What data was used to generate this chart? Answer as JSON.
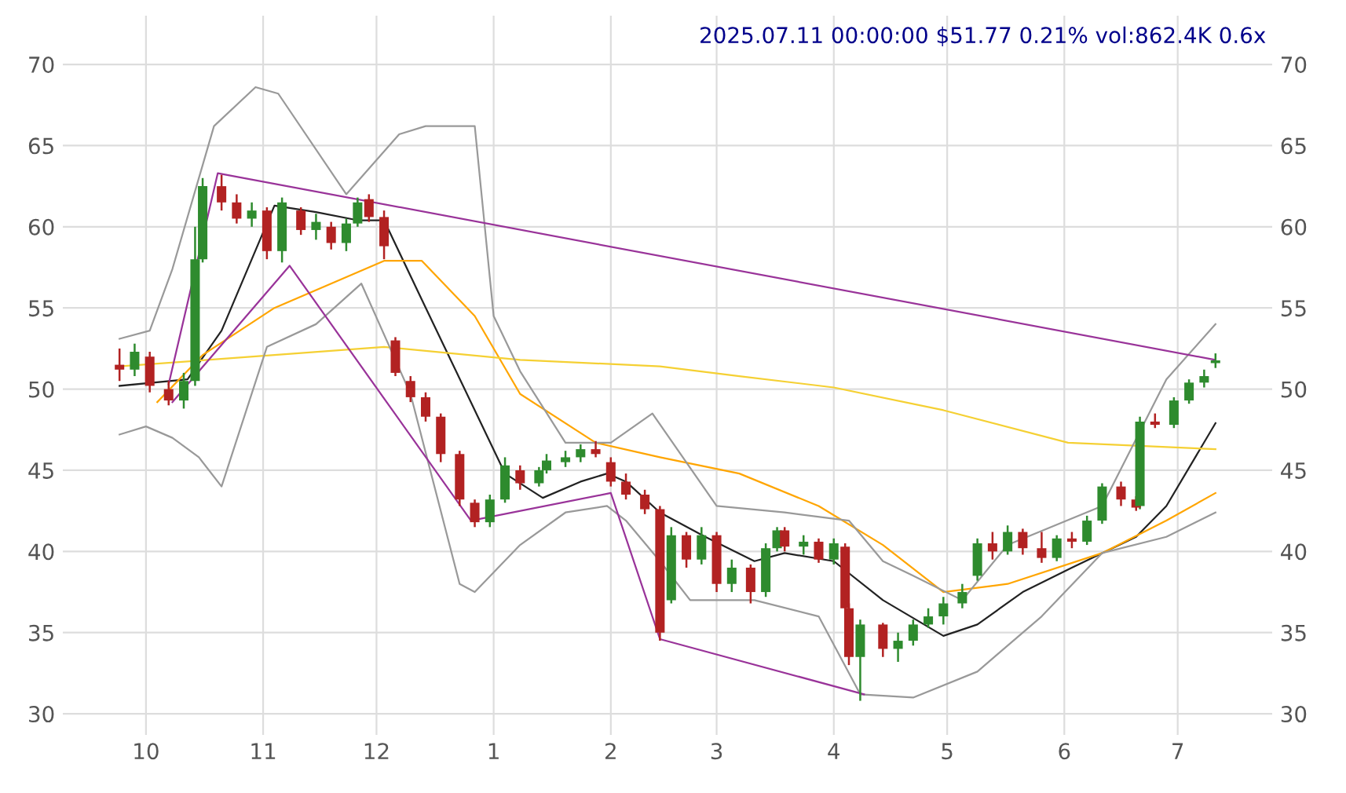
{
  "chart_data": {
    "type": "candlestick",
    "title": "2025.07.11 00:00:00 $51.77 0.21% vol:862.4K 0.6x",
    "x": [
      "2024-09-24",
      "2024-09-28",
      "2024-10-02",
      "2024-10-07",
      "2024-10-11",
      "2024-10-14",
      "2024-10-16",
      "2024-10-21",
      "2024-10-25",
      "2024-10-29",
      "2024-11-02",
      "2024-11-06",
      "2024-11-11",
      "2024-11-15",
      "2024-11-19",
      "2024-11-23",
      "2024-11-26",
      "2024-11-29",
      "2024-12-03",
      "2024-12-06",
      "2024-12-10",
      "2024-12-14",
      "2024-12-18",
      "2024-12-23",
      "2024-12-27",
      "2024-12-31",
      "2025-01-04",
      "2025-01-08",
      "2025-01-13",
      "2025-01-15",
      "2025-01-20",
      "2025-01-24",
      "2025-01-28",
      "2025-02-01",
      "2025-02-05",
      "2025-02-10",
      "2025-02-14",
      "2025-02-17",
      "2025-02-21",
      "2025-02-25",
      "2025-03-01",
      "2025-03-05",
      "2025-03-10",
      "2025-03-14",
      "2025-03-17",
      "2025-03-19",
      "2025-03-24",
      "2025-03-28",
      "2025-04-01",
      "2025-04-04",
      "2025-04-05",
      "2025-04-08",
      "2025-04-14",
      "2025-04-18",
      "2025-04-22",
      "2025-04-26",
      "2025-04-30",
      "2025-05-05",
      "2025-05-09",
      "2025-05-13",
      "2025-05-17",
      "2025-05-21",
      "2025-05-26",
      "2025-05-30",
      "2025-06-03",
      "2025-06-07",
      "2025-06-11",
      "2025-06-16",
      "2025-06-20",
      "2025-06-21",
      "2025-06-25",
      "2025-06-30",
      "2025-07-04",
      "2025-07-08",
      "2025-07-11"
    ],
    "ohlc": [
      [
        51.5,
        52.5,
        50.5,
        51.2
      ],
      [
        51.2,
        52.8,
        50.8,
        52.3
      ],
      [
        52,
        52.3,
        49.8,
        50.2
      ],
      [
        50,
        50.5,
        49,
        49.3
      ],
      [
        49.3,
        51,
        48.8,
        50.5
      ],
      [
        50.5,
        60,
        50.2,
        58
      ],
      [
        58,
        63,
        57.8,
        62.5
      ],
      [
        62.5,
        63.2,
        61,
        61.5
      ],
      [
        61.5,
        62,
        60.2,
        60.5
      ],
      [
        60.5,
        61.5,
        60,
        61
      ],
      [
        61,
        61.2,
        58,
        58.5
      ],
      [
        58.5,
        61.8,
        57.8,
        61.5
      ],
      [
        61,
        61.2,
        59.5,
        59.8
      ],
      [
        59.8,
        60.8,
        59.2,
        60.3
      ],
      [
        60,
        60.3,
        58.6,
        59
      ],
      [
        59,
        60.5,
        58.5,
        60.2
      ],
      [
        60.2,
        61.8,
        60,
        61.5
      ],
      [
        61.7,
        62,
        60.3,
        60.6
      ],
      [
        60.6,
        61,
        58,
        58.8
      ],
      [
        53,
        53.2,
        50.8,
        51
      ],
      [
        50.5,
        50.8,
        49.2,
        49.5
      ],
      [
        49.5,
        49.8,
        48,
        48.3
      ],
      [
        48.3,
        48.5,
        45.5,
        46
      ],
      [
        46,
        46.2,
        42.8,
        43.2
      ],
      [
        43,
        43.2,
        41.5,
        41.8
      ],
      [
        41.8,
        43.5,
        41.5,
        43.2
      ],
      [
        43.2,
        45.8,
        43,
        45.3
      ],
      [
        45,
        45.3,
        43.8,
        44.2
      ],
      [
        44.2,
        45.2,
        44,
        45
      ],
      [
        45,
        46,
        44.8,
        45.6
      ],
      [
        45.5,
        46.2,
        45.2,
        45.8
      ],
      [
        45.8,
        46.6,
        45.5,
        46.3
      ],
      [
        46.3,
        46.8,
        45.8,
        46
      ],
      [
        45.5,
        45.8,
        44,
        44.3
      ],
      [
        44.3,
        44.8,
        43.2,
        43.5
      ],
      [
        43.5,
        43.8,
        42.3,
        42.6
      ],
      [
        42.6,
        42.8,
        34.5,
        35
      ],
      [
        37,
        41.5,
        36.8,
        41
      ],
      [
        41,
        41.2,
        39,
        39.5
      ],
      [
        39.5,
        41.5,
        39.2,
        41
      ],
      [
        41,
        41.2,
        37.5,
        38
      ],
      [
        38,
        39.5,
        37.5,
        39
      ],
      [
        39,
        39.2,
        36.8,
        37.5
      ],
      [
        37.5,
        40.5,
        37.2,
        40.2
      ],
      [
        40.2,
        41.5,
        40,
        41.3
      ],
      [
        41.3,
        41.5,
        40,
        40.3
      ],
      [
        40.3,
        41,
        39.8,
        40.6
      ],
      [
        40.6,
        40.8,
        39.3,
        39.5
      ],
      [
        39.5,
        40.8,
        39.2,
        40.5
      ],
      [
        40.3,
        40.5,
        36,
        36.5
      ],
      [
        36.5,
        36.8,
        33,
        33.5
      ],
      [
        33.5,
        35.8,
        30.8,
        35.5
      ],
      [
        35.5,
        35.6,
        33.5,
        34
      ],
      [
        34,
        35,
        33.2,
        34.5
      ],
      [
        34.5,
        35.8,
        34.2,
        35.5
      ],
      [
        35.5,
        36.5,
        35.3,
        36
      ],
      [
        36,
        37.2,
        35.5,
        36.8
      ],
      [
        36.8,
        38,
        36.5,
        37.5
      ],
      [
        38.5,
        40.8,
        38.2,
        40.5
      ],
      [
        40.5,
        41.2,
        39.5,
        40
      ],
      [
        40,
        41.6,
        39.8,
        41.2
      ],
      [
        41.2,
        41.4,
        39.8,
        40.2
      ],
      [
        40.2,
        41.2,
        39.3,
        39.6
      ],
      [
        39.6,
        41,
        39.4,
        40.8
      ],
      [
        40.8,
        41.2,
        40.2,
        40.6
      ],
      [
        40.6,
        42.2,
        40.4,
        41.9
      ],
      [
        41.9,
        44.2,
        41.7,
        44
      ],
      [
        44,
        44.3,
        42.8,
        43.2
      ],
      [
        43.2,
        43.4,
        42.5,
        42.7
      ],
      [
        42.8,
        48.3,
        42.6,
        48
      ],
      [
        48,
        48.5,
        47.6,
        47.8
      ],
      [
        47.8,
        49.5,
        47.6,
        49.3
      ],
      [
        49.3,
        50.6,
        49.1,
        50.4
      ],
      [
        50.4,
        51.2,
        50.1,
        50.8
      ],
      [
        51.6,
        52.2,
        51.3,
        51.77
      ]
    ],
    "colors": [
      "#b22222",
      "#2e8b2e",
      "#b22222",
      "#b22222",
      "#2e8b2e",
      "#2e8b2e",
      "#2e8b2e",
      "#b22222",
      "#b22222",
      "#2e8b2e",
      "#b22222",
      "#2e8b2e",
      "#b22222",
      "#2e8b2e",
      "#b22222",
      "#2e8b2e",
      "#2e8b2e",
      "#b22222",
      "#b22222",
      "#b22222",
      "#b22222",
      "#b22222",
      "#b22222",
      "#b22222",
      "#b22222",
      "#2e8b2e",
      "#2e8b2e",
      "#b22222",
      "#2e8b2e",
      "#2e8b2e",
      "#2e8b2e",
      "#2e8b2e",
      "#b22222",
      "#b22222",
      "#b22222",
      "#b22222",
      "#b22222",
      "#2e8b2e",
      "#b22222",
      "#2e8b2e",
      "#b22222",
      "#2e8b2e",
      "#b22222",
      "#2e8b2e",
      "#2e8b2e",
      "#b22222",
      "#2e8b2e",
      "#b22222",
      "#2e8b2e",
      "#b22222",
      "#b22222",
      "#2e8b2e",
      "#b22222",
      "#2e8b2e",
      "#2e8b2e",
      "#2e8b2e",
      "#2e8b2e",
      "#2e8b2e",
      "#2e8b2e",
      "#b22222",
      "#2e8b2e",
      "#b22222",
      "#b22222",
      "#2e8b2e",
      "#b22222",
      "#2e8b2e",
      "#2e8b2e",
      "#b22222",
      "#b22222",
      "#2e8b2e",
      "#b22222",
      "#2e8b2e",
      "#2e8b2e",
      "#2e8b2e",
      "#2e8b2e"
    ],
    "series": [
      {
        "type": "line",
        "color": "#222222",
        "x": [
          "2024-09-24",
          "2024-10-12",
          "2024-10-21",
          "2024-11-04",
          "2024-11-15",
          "2024-11-26",
          "2024-12-03",
          "2024-12-13",
          "2024-12-27",
          "2025-01-04",
          "2025-01-14",
          "2025-01-24",
          "2025-01-31",
          "2025-02-05",
          "2025-02-14",
          "2025-02-26",
          "2025-03-11",
          "2025-03-19",
          "2025-04-01",
          "2025-04-14",
          "2025-04-30",
          "2025-05-09",
          "2025-05-21",
          "2025-06-03",
          "2025-06-20",
          "2025-06-28",
          "2025-07-11"
        ],
        "values": [
          50.2,
          50.6,
          53.6,
          61.3,
          60.9,
          60.4,
          60.4,
          55.5,
          48.7,
          44.8,
          43.3,
          44.3,
          44.8,
          44.3,
          42.4,
          40.9,
          39.4,
          39.9,
          39.4,
          37.0,
          34.8,
          35.5,
          37.5,
          39.0,
          40.9,
          42.8,
          47.9
        ]
      },
      {
        "type": "line",
        "color": "#ffa500",
        "x": [
          "2024-10-04",
          "2024-10-16",
          "2024-11-04",
          "2024-12-03",
          "2024-12-13",
          "2024-12-27",
          "2025-01-08",
          "2025-01-28",
          "2025-02-14",
          "2025-03-07",
          "2025-03-28",
          "2025-04-14",
          "2025-04-30",
          "2025-05-17",
          "2025-06-11",
          "2025-06-28",
          "2025-07-11"
        ],
        "values": [
          49.2,
          52.1,
          55.0,
          57.9,
          57.9,
          54.5,
          49.7,
          46.7,
          45.8,
          44.8,
          42.8,
          40.4,
          37.5,
          38.0,
          39.9,
          41.9,
          43.6
        ]
      },
      {
        "type": "line",
        "color": "#f5d033",
        "x": [
          "2024-09-24",
          "2024-11-04",
          "2024-12-03",
          "2025-01-08",
          "2025-02-14",
          "2025-03-07",
          "2025-04-01",
          "2025-04-30",
          "2025-06-02",
          "2025-07-11"
        ],
        "values": [
          51.4,
          52.1,
          52.6,
          51.8,
          51.4,
          50.8,
          50.1,
          48.7,
          46.7,
          46.3
        ]
      },
      {
        "type": "line",
        "color": "#999999",
        "x": [
          "2024-09-24",
          "2024-10-02",
          "2024-10-08",
          "2024-10-19",
          "2024-10-30",
          "2024-11-05",
          "2024-11-23",
          "2024-12-07",
          "2024-12-14",
          "2024-12-27",
          "2025-01-01",
          "2025-01-08",
          "2025-01-20",
          "2025-02-01",
          "2025-02-12",
          "2025-03-01",
          "2025-03-19",
          "2025-04-05",
          "2025-04-14",
          "2025-04-22",
          "2025-05-05",
          "2025-05-17",
          "2025-06-11",
          "2025-06-28",
          "2025-07-11"
        ],
        "values": [
          53.1,
          53.6,
          57.4,
          66.2,
          68.6,
          68.2,
          62.0,
          65.7,
          66.2,
          66.2,
          54.5,
          51.1,
          46.7,
          46.7,
          48.5,
          42.8,
          42.4,
          41.9,
          39.4,
          38.5,
          37.0,
          40.4,
          42.8,
          50.6,
          54.0
        ]
      },
      {
        "type": "line",
        "color": "#999999",
        "x": [
          "2024-09-24",
          "2024-10-01",
          "2024-10-08",
          "2024-10-15",
          "2024-10-21",
          "2024-11-02",
          "2024-11-15",
          "2024-11-27",
          "2024-12-10",
          "2024-12-23",
          "2024-12-27",
          "2025-01-08",
          "2025-01-20",
          "2025-01-31",
          "2025-02-05",
          "2025-02-14",
          "2025-02-22",
          "2025-03-11",
          "2025-03-28",
          "2025-04-08",
          "2025-04-22",
          "2025-05-09",
          "2025-05-26",
          "2025-06-11",
          "2025-06-28",
          "2025-07-11"
        ],
        "values": [
          47.2,
          47.7,
          47.0,
          45.8,
          44.0,
          52.6,
          54.0,
          56.5,
          49.7,
          38.0,
          37.5,
          40.4,
          42.4,
          42.8,
          41.9,
          39.4,
          37.0,
          37.0,
          36.0,
          31.2,
          31.0,
          32.6,
          36.0,
          39.9,
          40.9,
          42.4
        ]
      },
      {
        "type": "line",
        "color": "#993399",
        "x": [
          "2024-10-07",
          "2024-10-20",
          "2025-07-11"
        ],
        "values": [
          50.3,
          63.3,
          51.8
        ]
      },
      {
        "type": "line",
        "color": "#993399",
        "x": [
          "2024-10-08",
          "2024-11-08",
          "2024-12-26",
          "2025-02-01",
          "2025-02-14",
          "2025-04-09"
        ],
        "values": [
          49.2,
          57.6,
          41.9,
          43.6,
          34.6,
          31.2
        ]
      }
    ],
    "xlim": [
      "2024-09-09",
      "2025-07-26"
    ],
    "xticks": [
      {
        "value": "2024-10-01",
        "label": "10"
      },
      {
        "value": "2024-11-01",
        "label": "11"
      },
      {
        "value": "2024-12-01",
        "label": "12"
      },
      {
        "value": "2025-01-01",
        "label": "1"
      },
      {
        "value": "2025-02-01",
        "label": "2"
      },
      {
        "value": "2025-03-01",
        "label": "3"
      },
      {
        "value": "2025-04-01",
        "label": "4"
      },
      {
        "value": "2025-05-01",
        "label": "5"
      },
      {
        "value": "2025-06-01",
        "label": "6"
      },
      {
        "value": "2025-07-01",
        "label": "7"
      }
    ],
    "ylim": [
      28.7,
      73
    ],
    "yticks": [
      30,
      35,
      40,
      45,
      50,
      55,
      60,
      65,
      70
    ],
    "y2lim": [
      28.7,
      73
    ],
    "y2ticks": [
      30,
      35,
      40,
      45,
      50,
      55,
      60,
      65,
      70
    ],
    "grid": true
  }
}
